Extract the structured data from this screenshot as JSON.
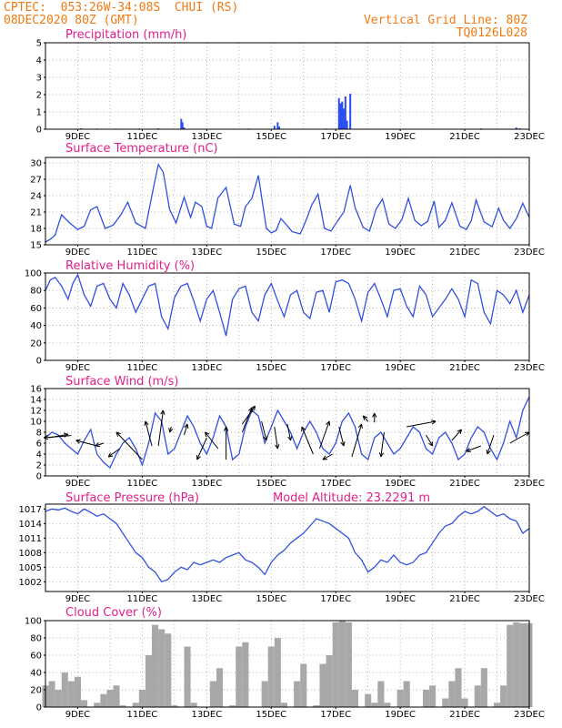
{
  "header": {
    "line1_left": "CPTEC:  053:26W-34:08S  CHUI (RS)",
    "line2_left": "08DEC2020 80Z (GMT)",
    "line1_right": "Vertical Grid Line: 80Z",
    "line2_right": "TQ0126L028"
  },
  "x_tick_labels": [
    "9DEC",
    "11DEC",
    "13DEC",
    "15DEC",
    "17DEC",
    "19DEC",
    "21DEC",
    "23DEC"
  ],
  "colors": {
    "line": "#3050e0",
    "bar": "#2a4ff0",
    "cloud": "#a8a8a8",
    "title": "#e0208a",
    "header": "#f07a10"
  },
  "chart_data": [
    {
      "type": "bar",
      "title": "Precipitation (mm/h)",
      "ylim": [
        0,
        5
      ],
      "yticks": [
        0,
        1,
        2,
        3,
        4,
        5
      ],
      "x": [
        9.1,
        9.6,
        10.3,
        10.9,
        11.5,
        12.21,
        12.25,
        12.3,
        14.3,
        15.1,
        15.2,
        15.25,
        16.7,
        17.1,
        17.15,
        17.2,
        17.25,
        17.3,
        17.35,
        17.45,
        21.5,
        22.6,
        22.7
      ],
      "values": [
        0.05,
        0.04,
        0.03,
        0.04,
        0.05,
        0.6,
        0.4,
        0.1,
        0.04,
        0.2,
        0.4,
        0.15,
        0.04,
        1.8,
        1.5,
        1.6,
        1.2,
        1.9,
        0.5,
        2.05,
        0.05,
        0.1,
        0.05
      ]
    },
    {
      "type": "line",
      "title": "Surface Temperature (nC)",
      "ylim": [
        15,
        31
      ],
      "yticks": [
        15,
        18,
        21,
        24,
        27,
        30
      ],
      "x": [
        8.0,
        8.15,
        8.3,
        8.5,
        8.75,
        9.0,
        9.2,
        9.4,
        9.6,
        9.85,
        10.1,
        10.35,
        10.55,
        10.8,
        11.1,
        11.35,
        11.5,
        11.65,
        11.85,
        12.05,
        12.3,
        12.5,
        12.65,
        12.85,
        13.0,
        13.15,
        13.35,
        13.6,
        13.85,
        14.05,
        14.2,
        14.4,
        14.6,
        14.85,
        15.0,
        15.15,
        15.3,
        15.45,
        15.65,
        15.9,
        16.1,
        16.25,
        16.45,
        16.65,
        16.85,
        17.05,
        17.25,
        17.45,
        17.6,
        17.85,
        18.05,
        18.25,
        18.45,
        18.65,
        18.85,
        19.05,
        19.25,
        19.45,
        19.65,
        19.85,
        20.05,
        20.2,
        20.4,
        20.6,
        20.85,
        21.05,
        21.2,
        21.35,
        21.6,
        21.85,
        22.05,
        22.2,
        22.4,
        22.6,
        22.8,
        23.0
      ],
      "values": [
        15.5,
        16.0,
        16.8,
        20.5,
        19.0,
        17.8,
        18.4,
        21.4,
        22.0,
        18.0,
        18.6,
        20.6,
        22.8,
        19.0,
        18.0,
        25.5,
        29.7,
        28.3,
        21.5,
        19.0,
        23.7,
        20.0,
        22.8,
        22.0,
        18.4,
        18.0,
        23.6,
        25.5,
        18.8,
        18.4,
        22.0,
        23.5,
        27.7,
        18.0,
        17.2,
        17.6,
        19.8,
        18.8,
        17.4,
        17.0,
        19.8,
        22.2,
        24.3,
        18.0,
        17.5,
        19.3,
        21.0,
        25.9,
        21.8,
        18.2,
        17.5,
        21.5,
        23.4,
        18.8,
        18.0,
        19.6,
        23.5,
        19.5,
        18.5,
        19.3,
        23.0,
        18.2,
        19.5,
        22.7,
        18.4,
        17.8,
        19.4,
        23.2,
        19.2,
        18.3,
        21.7,
        19.5,
        18.0,
        19.8,
        22.6,
        20.0
      ]
    },
    {
      "type": "line",
      "title": "Relative Humidity (%)",
      "ylim": [
        0,
        100
      ],
      "yticks": [
        0,
        20,
        40,
        60,
        80,
        100
      ],
      "x": [
        8.0,
        8.15,
        8.3,
        8.5,
        8.7,
        8.85,
        9.0,
        9.2,
        9.4,
        9.6,
        9.8,
        10.0,
        10.2,
        10.4,
        10.6,
        10.8,
        11.0,
        11.2,
        11.4,
        11.6,
        11.8,
        12.0,
        12.2,
        12.4,
        12.6,
        12.8,
        13.0,
        13.2,
        13.4,
        13.6,
        13.8,
        14.0,
        14.2,
        14.4,
        14.6,
        14.8,
        15.0,
        15.2,
        15.4,
        15.6,
        15.8,
        16.0,
        16.2,
        16.4,
        16.6,
        16.8,
        17.0,
        17.2,
        17.4,
        17.6,
        17.8,
        18.0,
        18.2,
        18.4,
        18.6,
        18.8,
        19.0,
        19.2,
        19.4,
        19.6,
        19.8,
        20.0,
        20.2,
        20.4,
        20.6,
        20.8,
        21.0,
        21.2,
        21.4,
        21.6,
        21.8,
        22.0,
        22.2,
        22.4,
        22.6,
        22.8,
        23.0
      ],
      "values": [
        80,
        92,
        95,
        85,
        70,
        88,
        98,
        75,
        62,
        85,
        88,
        70,
        60,
        88,
        75,
        55,
        70,
        85,
        88,
        50,
        36,
        72,
        85,
        88,
        68,
        45,
        70,
        80,
        55,
        28,
        70,
        82,
        85,
        55,
        45,
        75,
        88,
        68,
        50,
        75,
        80,
        55,
        48,
        78,
        80,
        55,
        90,
        92,
        88,
        70,
        45,
        78,
        88,
        70,
        50,
        80,
        82,
        62,
        50,
        85,
        75,
        50,
        60,
        70,
        82,
        70,
        50,
        92,
        88,
        55,
        42,
        80,
        75,
        65,
        80,
        55,
        75
      ]
    },
    {
      "type": "line",
      "title": "Surface Wind (m/s)",
      "ylim": [
        0,
        16
      ],
      "yticks": [
        0,
        2,
        4,
        6,
        8,
        10,
        12,
        14,
        16
      ],
      "x": [
        8.0,
        8.2,
        8.4,
        8.6,
        8.8,
        9.0,
        9.2,
        9.4,
        9.6,
        9.8,
        10.0,
        10.2,
        10.4,
        10.6,
        10.8,
        11.0,
        11.2,
        11.4,
        11.6,
        11.8,
        12.0,
        12.2,
        12.4,
        12.6,
        12.8,
        13.0,
        13.2,
        13.4,
        13.6,
        13.8,
        14.0,
        14.2,
        14.4,
        14.6,
        14.8,
        15.0,
        15.2,
        15.4,
        15.6,
        15.8,
        16.0,
        16.2,
        16.4,
        16.6,
        16.8,
        17.0,
        17.2,
        17.4,
        17.6,
        17.8,
        18.0,
        18.2,
        18.4,
        18.6,
        18.8,
        19.0,
        19.2,
        19.4,
        19.6,
        19.8,
        20.0,
        20.2,
        20.4,
        20.6,
        20.8,
        21.0,
        21.2,
        21.4,
        21.6,
        21.8,
        22.0,
        22.2,
        22.4,
        22.6,
        22.8,
        23.0
      ],
      "values": [
        7,
        8,
        7.5,
        6,
        5,
        4,
        6.5,
        8.5,
        4,
        2.5,
        1.5,
        4,
        6,
        7,
        5,
        2,
        6,
        11.5,
        10,
        4,
        5,
        8,
        11,
        9,
        6,
        4,
        7,
        11,
        9,
        3,
        4,
        9,
        12,
        11,
        6,
        9,
        12,
        10,
        8,
        5,
        8,
        10,
        8,
        5,
        4,
        6,
        10,
        11.5,
        9,
        4,
        3,
        7,
        8,
        6,
        4,
        5,
        7,
        9,
        8,
        5,
        4,
        7,
        8,
        6,
        3,
        4,
        7,
        9,
        8,
        5,
        3,
        6,
        10,
        7,
        12,
        14.5
      ],
      "arrows": [
        [
          8.1,
          7,
          8.7,
          7.6
        ],
        [
          8.8,
          7.4,
          7.95,
          7
        ],
        [
          9.6,
          5.5,
          8.95,
          6.5
        ],
        [
          9.8,
          6,
          9.55,
          5.5
        ],
        [
          10.3,
          5,
          9.95,
          3.5
        ],
        [
          11.0,
          3,
          10.2,
          8
        ],
        [
          11.3,
          5.5,
          11.1,
          10
        ],
        [
          11.5,
          5.5,
          11.65,
          12
        ],
        [
          11.9,
          9,
          11.85,
          8
        ],
        [
          12.3,
          7.5,
          12.4,
          9.5
        ],
        [
          13.0,
          7,
          12.7,
          3
        ],
        [
          13.35,
          5,
          12.95,
          8
        ],
        [
          13.6,
          3,
          13.6,
          9
        ],
        [
          14.1,
          8,
          14.4,
          12.5
        ],
        [
          14.1,
          9.5,
          14.5,
          12.8
        ],
        [
          14.7,
          10,
          14.85,
          6.5
        ],
        [
          15.1,
          9,
          15.2,
          5
        ],
        [
          15.5,
          9.5,
          15.6,
          6.5
        ],
        [
          16.3,
          4,
          15.95,
          9
        ],
        [
          16.5,
          5,
          16.8,
          10
        ],
        [
          16.9,
          4,
          16.6,
          3
        ],
        [
          17.1,
          9,
          17.25,
          5.5
        ],
        [
          17.5,
          3.5,
          17.8,
          9.5
        ],
        [
          18.0,
          10,
          17.85,
          11
        ],
        [
          18.2,
          9.8,
          18.2,
          11.5
        ],
        [
          18.5,
          8,
          18.4,
          3.5
        ],
        [
          19.2,
          9,
          20.1,
          10
        ],
        [
          19.8,
          7.5,
          20.0,
          5.5
        ],
        [
          20.6,
          6.5,
          20.9,
          8.5
        ],
        [
          21.5,
          5.5,
          21.05,
          4.5
        ],
        [
          21.9,
          7.5,
          21.7,
          4
        ],
        [
          22.4,
          6,
          23.0,
          8
        ]
      ]
    },
    {
      "type": "line",
      "title": "Surface Pressure (hPa)",
      "subtitle": "Model Altitude: 23.2291 m",
      "ylim": [
        1000,
        1018
      ],
      "yticks": [
        1002,
        1005,
        1008,
        1011,
        1014,
        1017
      ],
      "x": [
        8.0,
        8.2,
        8.4,
        8.6,
        8.8,
        9.0,
        9.2,
        9.4,
        9.6,
        9.8,
        10.0,
        10.2,
        10.4,
        10.6,
        10.8,
        11.0,
        11.2,
        11.4,
        11.6,
        11.8,
        12.0,
        12.2,
        12.4,
        12.6,
        12.8,
        13.0,
        13.2,
        13.4,
        13.6,
        13.8,
        14.0,
        14.2,
        14.4,
        14.6,
        14.8,
        15.0,
        15.2,
        15.4,
        15.6,
        15.8,
        16.0,
        16.2,
        16.4,
        16.6,
        16.8,
        17.0,
        17.2,
        17.4,
        17.6,
        17.8,
        18.0,
        18.2,
        18.4,
        18.6,
        18.8,
        19.0,
        19.2,
        19.4,
        19.6,
        19.8,
        20.0,
        20.2,
        20.4,
        20.6,
        20.8,
        21.0,
        21.2,
        21.4,
        21.6,
        21.8,
        22.0,
        22.2,
        22.4,
        22.6,
        22.8,
        23.0
      ],
      "values": [
        1016.5,
        1017,
        1016.8,
        1017.2,
        1016.5,
        1016,
        1017,
        1016.3,
        1015.5,
        1016,
        1015,
        1014,
        1012,
        1010,
        1008,
        1007,
        1005,
        1004,
        1002,
        1002.5,
        1004,
        1005,
        1004.5,
        1006,
        1005.5,
        1006,
        1006.5,
        1006,
        1007,
        1007.5,
        1008,
        1006.5,
        1006,
        1005,
        1003.5,
        1006,
        1007.5,
        1008.5,
        1010,
        1011,
        1012,
        1013.5,
        1015,
        1014.5,
        1014,
        1013,
        1012,
        1011,
        1008,
        1006.5,
        1004,
        1005,
        1006.5,
        1006,
        1007.5,
        1006,
        1005.5,
        1006,
        1007.5,
        1008,
        1010,
        1012,
        1013.5,
        1014,
        1015.5,
        1016.5,
        1016,
        1016.5,
        1017.5,
        1016.5,
        1015.5,
        1016,
        1015,
        1014.5,
        1012,
        1013
      ]
    },
    {
      "type": "area",
      "title": "Cloud Cover (%)",
      "ylim": [
        0,
        100
      ],
      "yticks": [
        0,
        20,
        40,
        60,
        80,
        100
      ],
      "x": [
        8.0,
        8.2,
        8.4,
        8.6,
        8.8,
        9.0,
        9.2,
        9.4,
        9.6,
        9.8,
        10.0,
        10.2,
        10.4,
        10.6,
        10.8,
        11.0,
        11.2,
        11.4,
        11.6,
        11.8,
        12.0,
        12.2,
        12.4,
        12.6,
        12.8,
        13.0,
        13.2,
        13.4,
        13.6,
        13.8,
        14.0,
        14.2,
        14.4,
        14.6,
        14.8,
        15.0,
        15.2,
        15.4,
        15.6,
        15.8,
        16.0,
        16.2,
        16.4,
        16.6,
        16.8,
        17.0,
        17.2,
        17.4,
        17.6,
        17.8,
        18.0,
        18.2,
        18.4,
        18.6,
        18.8,
        19.0,
        19.2,
        19.4,
        19.6,
        19.8,
        20.0,
        20.2,
        20.4,
        20.6,
        20.8,
        21.0,
        21.2,
        21.4,
        21.6,
        21.8,
        22.0,
        22.2,
        22.4,
        22.6,
        22.8,
        23.0
      ],
      "values": [
        25,
        30,
        20,
        40,
        30,
        35,
        8,
        0,
        5,
        15,
        20,
        25,
        2,
        0,
        5,
        20,
        60,
        95,
        90,
        85,
        2,
        0,
        70,
        5,
        0,
        0,
        30,
        45,
        0,
        2,
        70,
        75,
        0,
        0,
        30,
        70,
        80,
        5,
        0,
        30,
        50,
        0,
        2,
        50,
        60,
        98,
        100,
        98,
        20,
        0,
        15,
        5,
        30,
        5,
        0,
        20,
        30,
        0,
        0,
        20,
        25,
        0,
        10,
        30,
        45,
        10,
        0,
        25,
        45,
        0,
        5,
        25,
        95,
        98,
        97,
        97
      ]
    }
  ]
}
